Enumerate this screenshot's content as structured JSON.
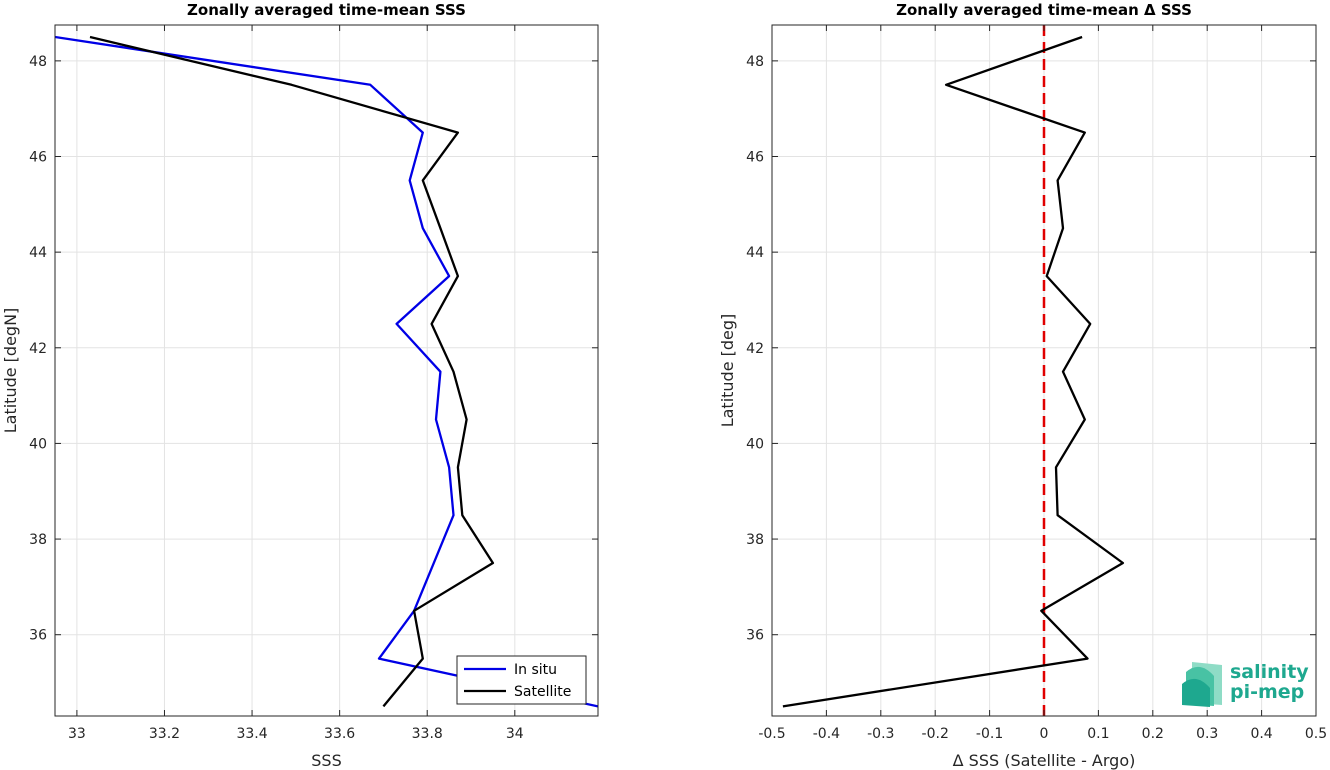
{
  "chart_data": [
    {
      "type": "line",
      "title": "Zonally averaged time-mean SSS",
      "xlabel": "SSS",
      "ylabel": "Latitude [degN]",
      "xlim": [
        32.95,
        34.19
      ],
      "ylim": [
        34.3,
        48.75
      ],
      "xticks": [
        33,
        33.2,
        33.4,
        33.6,
        33.8,
        34
      ],
      "xtick_labels": [
        "33",
        "33.2",
        "33.4",
        "33.6",
        "33.8",
        "34"
      ],
      "yticks": [
        36,
        38,
        40,
        42,
        44,
        46,
        48
      ],
      "ytick_labels": [
        "36",
        "38",
        "40",
        "42",
        "44",
        "46",
        "48"
      ],
      "grid": true,
      "legend_position": "bottom-right",
      "series": [
        {
          "name": "In situ",
          "color": "#0000e6",
          "x": [
            32.95,
            33.67,
            33.79,
            33.76,
            33.79,
            33.85,
            33.73,
            33.83,
            33.82,
            33.85,
            33.86,
            33.77,
            33.69,
            34.19
          ],
          "y": [
            48.5,
            47.5,
            46.5,
            45.5,
            44.5,
            43.5,
            42.5,
            41.5,
            40.5,
            39.5,
            38.5,
            36.5,
            35.5,
            34.5
          ]
        },
        {
          "name": "Satellite",
          "color": "#000000",
          "x": [
            33.03,
            33.49,
            33.87,
            33.79,
            33.83,
            33.87,
            33.81,
            33.86,
            33.89,
            33.87,
            33.88,
            33.95,
            33.77,
            33.79,
            33.7
          ],
          "y": [
            48.5,
            47.5,
            46.5,
            45.5,
            44.5,
            43.5,
            42.5,
            41.5,
            40.5,
            39.5,
            38.5,
            37.5,
            36.5,
            35.5,
            34.5
          ]
        }
      ]
    },
    {
      "type": "line",
      "title": "Zonally averaged time-mean Δ SSS",
      "xlabel": "Δ SSS (Satellite - Argo)",
      "ylabel": "Latitude [deg]",
      "xlim": [
        -0.5,
        0.5
      ],
      "ylim": [
        34.3,
        48.75
      ],
      "xticks": [
        -0.5,
        -0.4,
        -0.3,
        -0.2,
        -0.1,
        0,
        0.1,
        0.2,
        0.3,
        0.4,
        0.5
      ],
      "xtick_labels": [
        "-0.5",
        "-0.4",
        "-0.3",
        "-0.2",
        "-0.1",
        "0",
        "0.1",
        "0.2",
        "0.3",
        "0.4",
        "0.5"
      ],
      "yticks": [
        36,
        38,
        40,
        42,
        44,
        46,
        48
      ],
      "ytick_labels": [
        "36",
        "38",
        "40",
        "42",
        "44",
        "46",
        "48"
      ],
      "grid": true,
      "reference_line": {
        "x": 0,
        "color": "#e00000",
        "style": "dashed"
      },
      "series": [
        {
          "color": "#000000",
          "x": [
            0.07,
            -0.18,
            0.075,
            0.025,
            0.035,
            0.005,
            0.085,
            0.035,
            0.075,
            0.022,
            0.025,
            0.145,
            -0.005,
            0.08,
            -0.48
          ],
          "y": [
            48.5,
            47.5,
            46.5,
            45.5,
            44.5,
            43.5,
            42.5,
            41.5,
            40.5,
            39.5,
            38.5,
            37.5,
            36.5,
            35.5,
            34.5
          ]
        }
      ]
    }
  ],
  "logo": {
    "line1": "salinity",
    "line2": "pi-mep",
    "color": "#1ea88f"
  }
}
